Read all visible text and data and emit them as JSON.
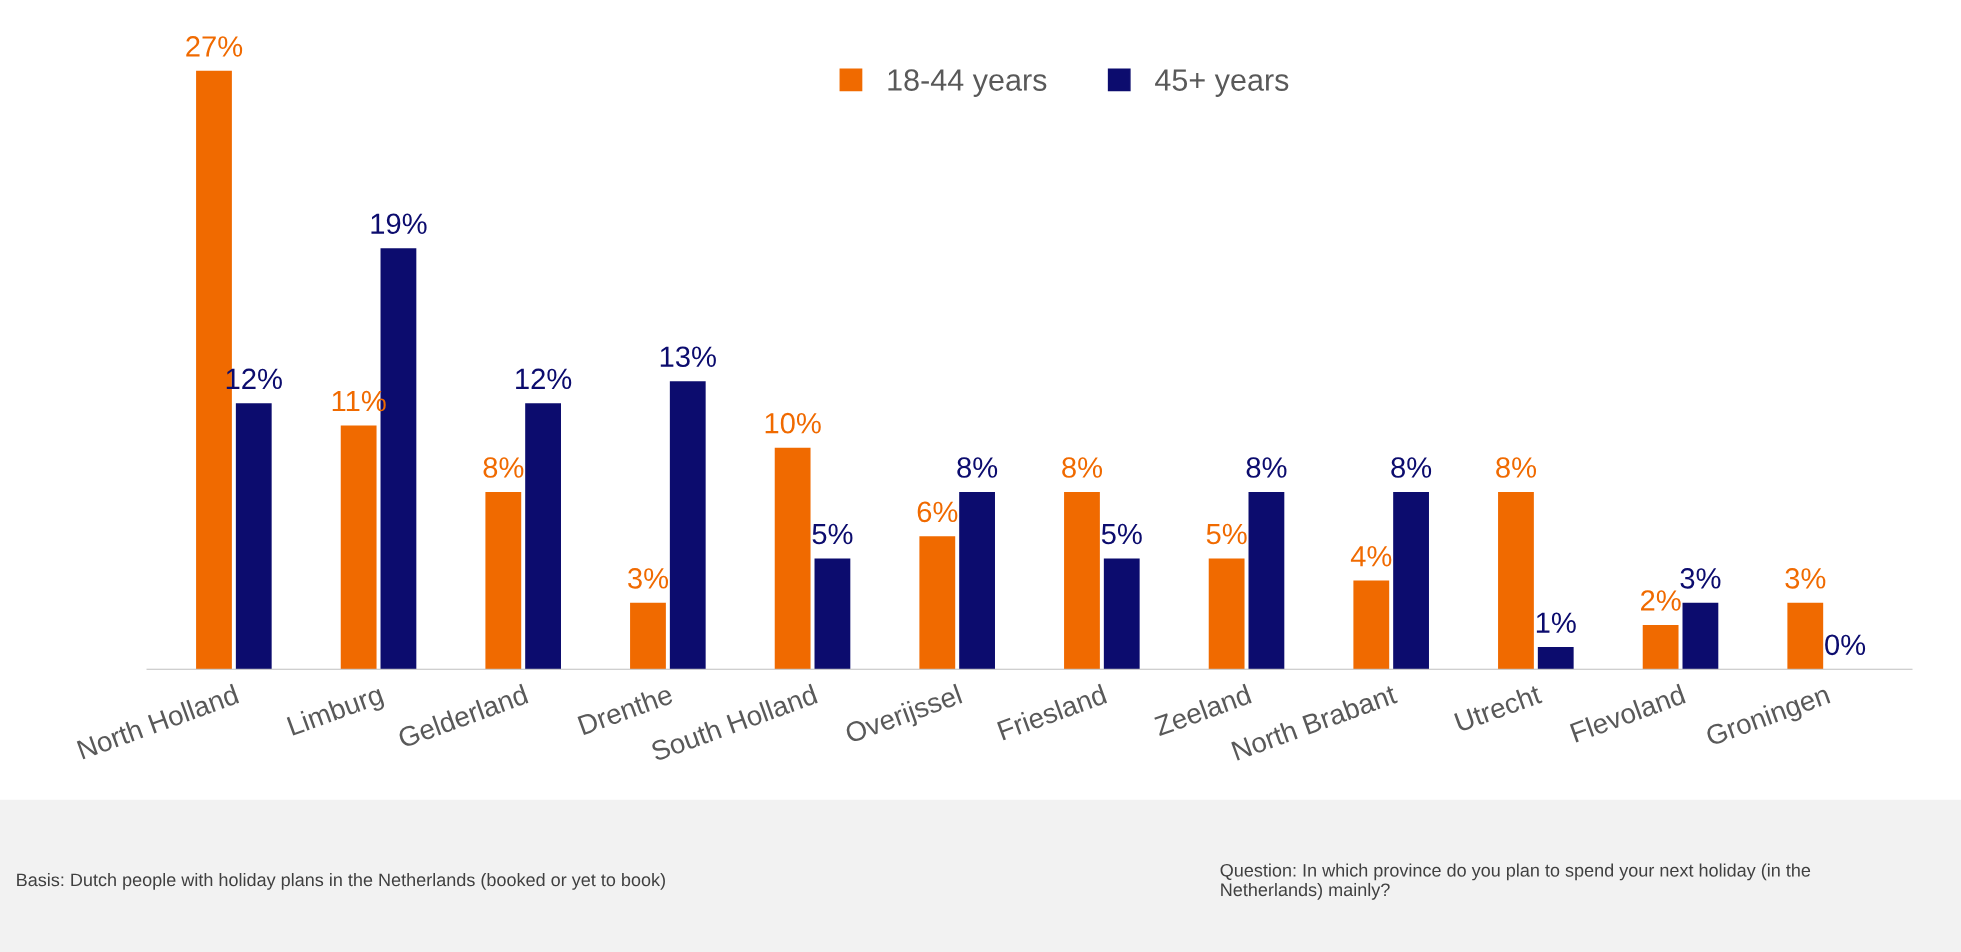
{
  "chart_data": {
    "type": "bar",
    "categories": [
      "North Holland",
      "Limburg",
      "Gelderland",
      "Drenthe",
      "South Holland",
      "Overijssel",
      "Friesland",
      "Zeeland",
      "North Brabant",
      "Utrecht",
      "Flevoland",
      "Groningen"
    ],
    "series": [
      {
        "name": "18-44 years",
        "color": "#f06a00",
        "values": [
          27,
          11,
          8,
          3,
          10,
          6,
          8,
          5,
          4,
          8,
          2,
          3
        ],
        "value_labels": [
          "27%",
          "11%",
          "8%",
          "3%",
          "10%",
          "6%",
          "8%",
          "5%",
          "4%",
          "8%",
          "2%",
          "3%"
        ]
      },
      {
        "name": "45+ years",
        "color": "#0c0c6e",
        "values": [
          12,
          19,
          12,
          13,
          5,
          8,
          5,
          8,
          8,
          1,
          3,
          0
        ],
        "value_labels": [
          "12%",
          "19%",
          "12%",
          "13%",
          "5%",
          "8%",
          "5%",
          "8%",
          "8%",
          "1%",
          "3%",
          "0%"
        ]
      }
    ],
    "legend": "top",
    "grid": false,
    "annotations": [
      "Basis: Dutch people with holiday plans in the Netherlands (booked or yet to book)",
      "Question: In which province do you plan to spend your next holiday (in the Netherlands) mainly?"
    ]
  }
}
